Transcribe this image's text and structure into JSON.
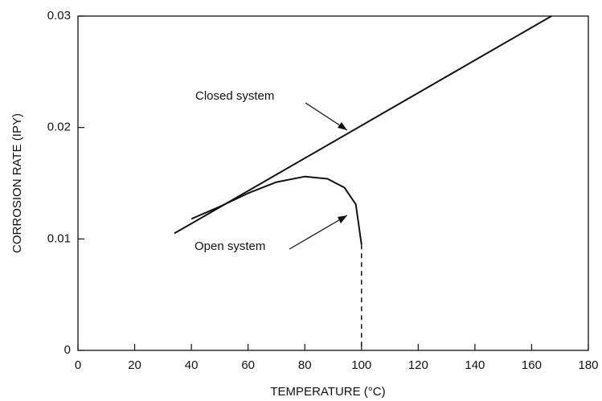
{
  "chart_data": {
    "type": "line",
    "xlabel": "TEMPERATURE (°C)",
    "ylabel": "CORROSION RATE (IPY)",
    "xlim": [
      0,
      180
    ],
    "xticks": [
      0,
      20,
      40,
      60,
      80,
      100,
      120,
      140,
      160,
      180
    ],
    "ylim": [
      0,
      0.03
    ],
    "yticks": [
      0,
      0.01,
      0.02,
      0.03
    ],
    "grid": false,
    "series": [
      {
        "name": "Closed system",
        "color": "#111111",
        "x": [
          34,
          167
        ],
        "values": [
          0.0105,
          0.03
        ]
      },
      {
        "name": "Open system",
        "color": "#111111",
        "x": [
          40,
          50,
          60,
          70,
          80,
          88,
          94,
          98,
          100
        ],
        "values": [
          0.0118,
          0.0129,
          0.0141,
          0.0151,
          0.0156,
          0.0154,
          0.0146,
          0.0131,
          0.0095
        ]
      },
      {
        "color": "#111111",
        "dashed": true,
        "x": [
          100,
          100
        ],
        "values": [
          0.0095,
          0
        ]
      }
    ]
  }
}
